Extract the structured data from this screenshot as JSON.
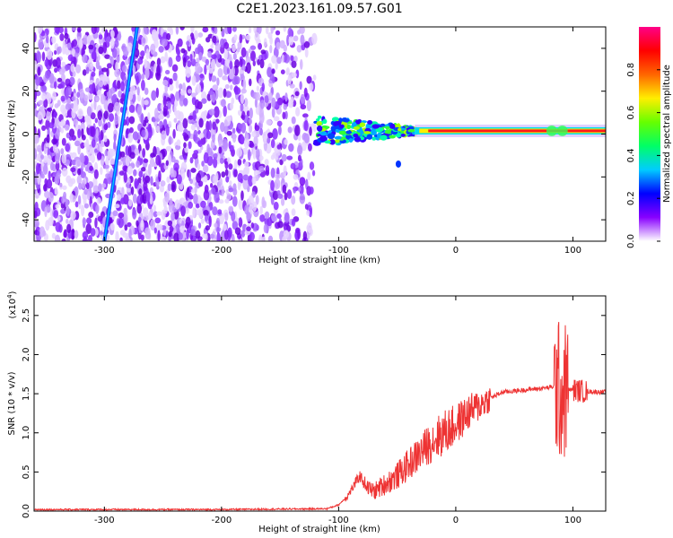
{
  "title": "C2E1.2023.161.09.57.G01",
  "colors": {
    "snr_line": "#ee3333",
    "axis": "#000000",
    "background": "#ffffff"
  },
  "chart_data": [
    {
      "type": "heatmap",
      "xlabel": "Height of straight line (km)",
      "ylabel": "Frequency (Hz)",
      "xlim": [
        -360,
        128
      ],
      "ylim": [
        -50,
        50
      ],
      "x_ticks": [
        -300,
        -200,
        -100,
        0,
        100
      ],
      "y_ticks": [
        -40,
        -20,
        0,
        20,
        40
      ],
      "colorbar": {
        "label": "Normalized spectral amplitude",
        "range": [
          0,
          1
        ],
        "ticks": [
          "0.0",
          "0.2",
          "0.4",
          "0.6",
          "0.8"
        ],
        "colormap": [
          "#ffffff",
          "#8800ff",
          "#0000ff",
          "#00ccff",
          "#00ff66",
          "#66ff00",
          "#ffee00",
          "#ff6600",
          "#ff0000",
          "#ff0088"
        ]
      },
      "features": {
        "noise_region_x": [
          -360,
          -120
        ],
        "diagonal_streak": {
          "from": [
            -300,
            -50
          ],
          "to": [
            -272,
            50
          ]
        },
        "signal_line_freq": 1.5,
        "signal_onset_x": -120
      }
    },
    {
      "type": "line",
      "xlabel": "Height of straight line (km)",
      "ylabel": "SNR (10 * v/v)",
      "y_multiplier_label": "(x10",
      "y_multiplier_exp": "4",
      "xlim": [
        -360,
        128
      ],
      "ylim": [
        0,
        2.75
      ],
      "x_ticks": [
        -300,
        -200,
        -100,
        0,
        100
      ],
      "y_ticks": [
        "0.0",
        "0.5",
        "1.0",
        "1.5",
        "2.0",
        "2.5"
      ],
      "series": [
        {
          "x": [
            -360,
            -300,
            -200,
            -110,
            -100,
            -92,
            -82,
            -75,
            -70,
            -60,
            -50,
            -40,
            -30,
            -20,
            -10,
            0,
            10,
            20,
            30,
            40,
            60,
            80,
            86,
            90,
            94,
            100,
            110,
            128
          ],
          "y": [
            0.02,
            0.02,
            0.02,
            0.03,
            0.08,
            0.2,
            0.45,
            0.3,
            0.25,
            0.35,
            0.45,
            0.6,
            0.75,
            0.9,
            1.0,
            1.1,
            1.25,
            1.35,
            1.45,
            1.52,
            1.55,
            1.58,
            1.6,
            1.5,
            1.55,
            1.55,
            1.53,
            1.52
          ]
        }
      ]
    }
  ]
}
